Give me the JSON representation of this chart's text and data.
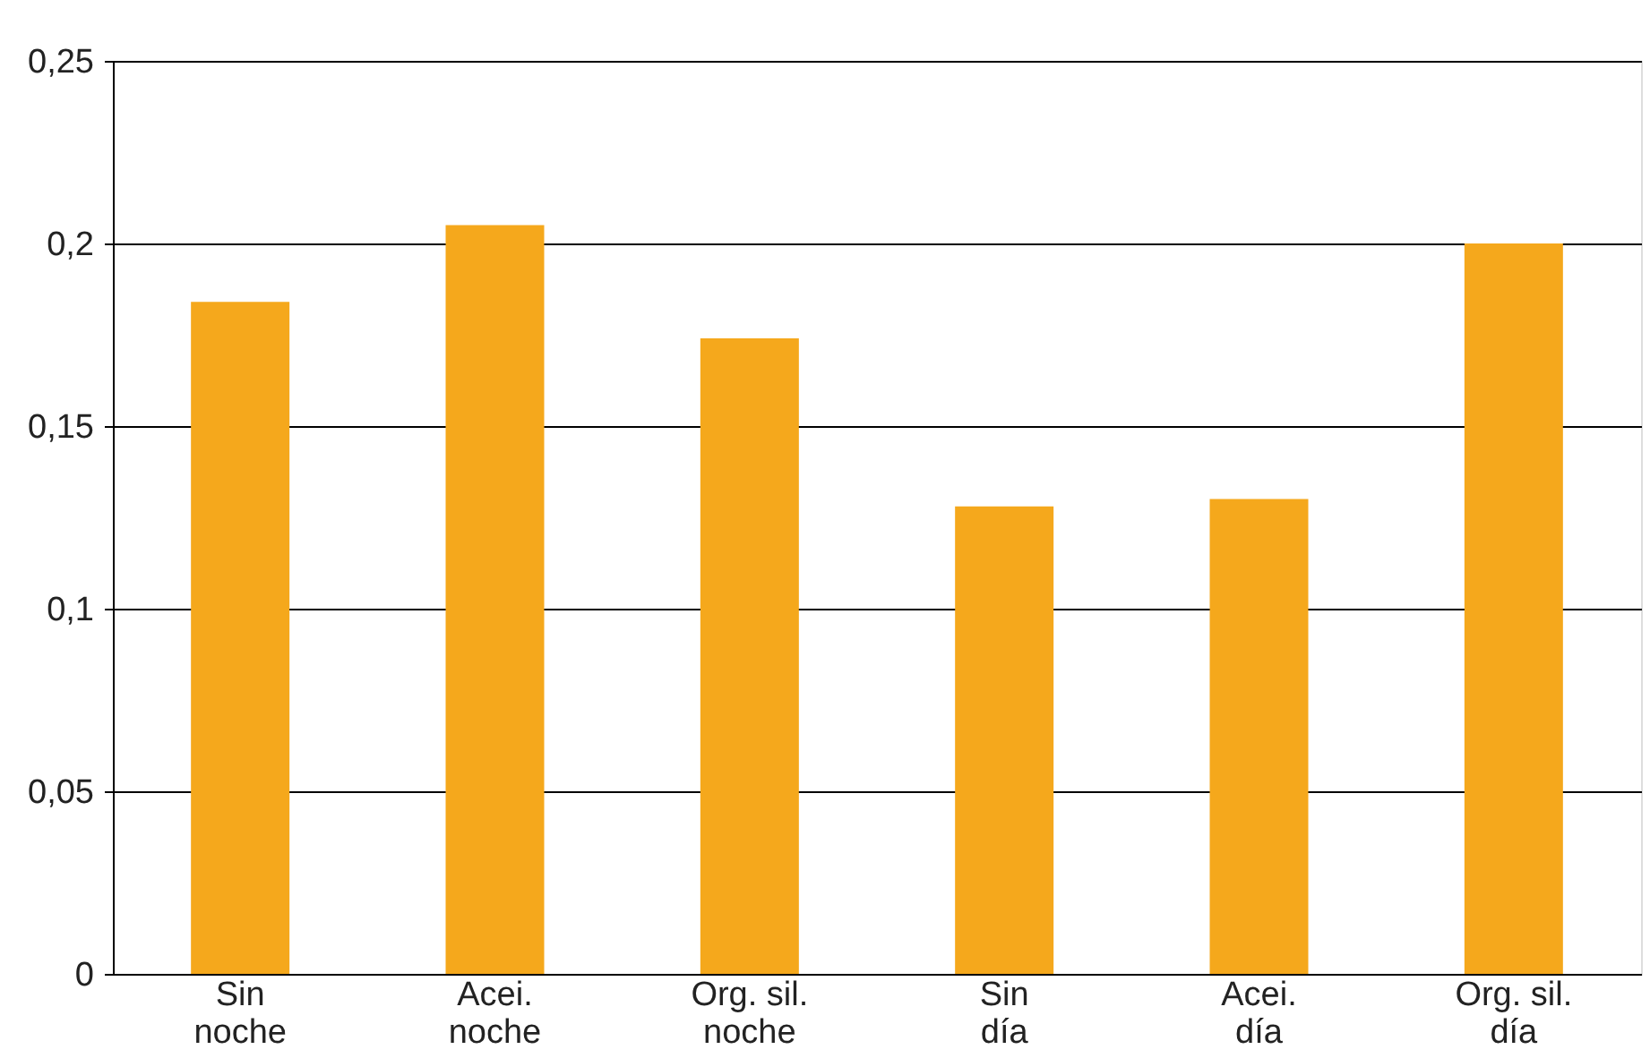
{
  "chart_data": {
    "type": "bar",
    "categories": [
      "Sin noche",
      "Acei. noche",
      "Org. sil. noche",
      "Sin día",
      "Acei. día",
      "Org. sil. día"
    ],
    "values": [
      0.184,
      0.205,
      0.174,
      0.128,
      0.13,
      0.2
    ],
    "color": "#f5a81c",
    "ylim": [
      0,
      0.25
    ],
    "yticks": [
      {
        "value": 0,
        "label": "0"
      },
      {
        "value": 0.05,
        "label": "0,05"
      },
      {
        "value": 0.1,
        "label": "0,1"
      },
      {
        "value": 0.15,
        "label": "0,15"
      },
      {
        "value": 0.2,
        "label": "0,2"
      },
      {
        "value": 0.25,
        "label": "0,25"
      }
    ],
    "grid": "y"
  }
}
